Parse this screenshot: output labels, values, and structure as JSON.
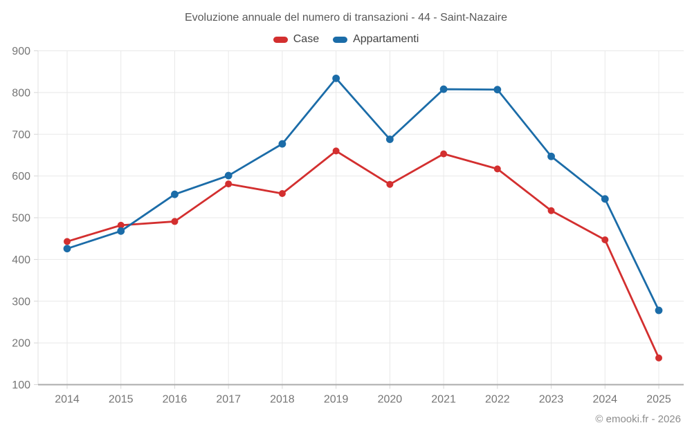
{
  "title": "Evoluzione annuale del numero di transazioni - 44 - Saint-Nazaire",
  "footer": {
    "copyright": "© emooki.fr - 2026"
  },
  "chart_data": {
    "type": "line",
    "title": "Evoluzione annuale del numero di transazioni - 44 - Saint-Nazaire",
    "x": [
      2014,
      2015,
      2016,
      2017,
      2018,
      2019,
      2020,
      2021,
      2022,
      2023,
      2024,
      2025
    ],
    "series": [
      {
        "name": "Case",
        "color": "#d32f2f",
        "marker_radius": 5,
        "values": [
          443,
          482,
          491,
          581,
          558,
          660,
          580,
          653,
          617,
          517,
          447,
          164
        ]
      },
      {
        "name": "Appartamenti",
        "color": "#1b6ca8",
        "marker_radius": 5.4,
        "values": [
          426,
          468,
          556,
          601,
          677,
          834,
          688,
          808,
          807,
          647,
          545,
          278
        ]
      }
    ],
    "xlabel": "",
    "ylabel": "",
    "ylim": [
      100,
      900
    ],
    "ytick_step": 100,
    "grid": true,
    "legend_position": "top"
  }
}
